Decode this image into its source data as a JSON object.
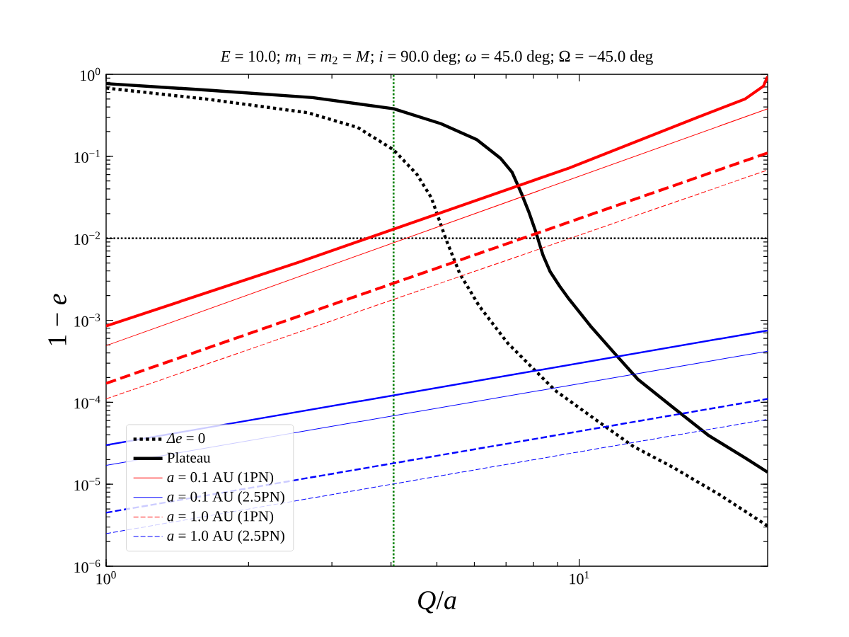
{
  "chart_data": {
    "type": "line",
    "title": "*E* = 10.0; *m*$_{1}$ = *m*$_{2}$ = *M*; *i* = 90.0 deg; *ω* = 45.0 deg; Ω = −45.0 deg",
    "xlabel": "*Q*/*a*",
    "ylabel": "1 − *e*",
    "log": "xy",
    "xlim": [
      1,
      25
    ],
    "ylim": [
      1e-06,
      1
    ],
    "xticks": [
      {
        "value": 1,
        "label": "10$^{0}$"
      },
      {
        "value": 10,
        "label": "10$^{1}$"
      }
    ],
    "yticks": [
      {
        "value": 1e-06,
        "label": "10$^{−6}$"
      },
      {
        "value": 1e-05,
        "label": "10$^{−5}$"
      },
      {
        "value": 0.0001,
        "label": "10$^{−4}$"
      },
      {
        "value": 0.001,
        "label": "10$^{−3}$"
      },
      {
        "value": 0.01,
        "label": "10$^{−2}$"
      },
      {
        "value": 0.1,
        "label": "10$^{−1}$"
      },
      {
        "value": 1,
        "label": "10$^{0}$"
      }
    ],
    "legend": "bottom left",
    "series": [
      {
        "name": "*Δe* = 0",
        "color": "#000000",
        "line_style": "dotted",
        "x": [
          1,
          1.625,
          2.67,
          3.4,
          4.05,
          4.54,
          4.87,
          5.22,
          5.59,
          6.14,
          7.05,
          8.88,
          10.8,
          13.0,
          15.8,
          19.9,
          25
        ],
        "values": [
          0.68,
          0.5,
          0.34,
          0.225,
          0.12,
          0.06,
          0.031,
          0.0099,
          0.0037,
          0.0015,
          0.00053,
          0.00014,
          6.2e-05,
          2.9e-05,
          1.6e-05,
          7.3e-06,
          3.1e-06
        ]
      },
      {
        "name": "Plateau",
        "color": "#000000",
        "line_style": "solid",
        "x": [
          1,
          1.65,
          2.73,
          4.05,
          5.1,
          6.07,
          6.81,
          7.21,
          7.55,
          7.82,
          8.09,
          8.38,
          8.68,
          9.09,
          9.52,
          10.56,
          11.85,
          13.3,
          15.8,
          18.8,
          22.4,
          25
        ],
        "values": [
          0.77,
          0.64,
          0.52,
          0.38,
          0.25,
          0.16,
          0.095,
          0.064,
          0.035,
          0.021,
          0.012,
          0.0062,
          0.0039,
          0.0026,
          0.0018,
          0.00085,
          0.0004,
          0.00019,
          8.6e-05,
          3.9e-05,
          2.1e-05,
          1.4e-05
        ]
      },
      {
        "color": "#ff0000",
        "line_style": "solid",
        "x": [
          1,
          2.55,
          9.52,
          17.8,
          22.4,
          24.5,
          25
        ],
        "values": [
          0.00085,
          0.0051,
          0.072,
          0.3,
          0.5,
          0.72,
          0.94
        ]
      },
      {
        "name": "*a* = 0.1 AU (1PN)",
        "color": "#ff0000",
        "line_style": "solid",
        "x": [
          1,
          25
        ],
        "values": [
          0.00049,
          0.38
        ]
      },
      {
        "color": "#0000ff",
        "line_style": "solid",
        "x": [
          1,
          25
        ],
        "values": [
          3e-05,
          0.00075
        ]
      },
      {
        "name": "*a* = 0.1 AU (2.5PN)",
        "color": "#0000ff",
        "line_style": "solid",
        "x": [
          1,
          25
        ],
        "values": [
          1.7e-05,
          0.00042
        ]
      },
      {
        "color": "#ff0000",
        "line_style": "dashed",
        "x": [
          1,
          25
        ],
        "values": [
          0.00017,
          0.11
        ]
      },
      {
        "name": "*a* = 1.0 AU (1PN)",
        "color": "#ff0000",
        "line_style": "dashed",
        "x": [
          1,
          25
        ],
        "values": [
          0.00011,
          0.068
        ]
      },
      {
        "color": "#0000ff",
        "line_style": "dashed",
        "x": [
          1,
          25
        ],
        "values": [
          4.5e-06,
          0.00011
        ]
      },
      {
        "name": "*a* = 1.0 AU (2.5PN)",
        "color": "#0000ff",
        "line_style": "dashed",
        "x": [
          1,
          25
        ],
        "values": [
          2.5e-06,
          6.2e-05
        ]
      }
    ],
    "ref_lines": [
      {
        "axis": "y",
        "value": 0.01,
        "color": "#000000",
        "line_style": "dotted"
      },
      {
        "axis": "x",
        "value": 4.05,
        "color": "#008000",
        "line_style": "dotted"
      }
    ]
  }
}
